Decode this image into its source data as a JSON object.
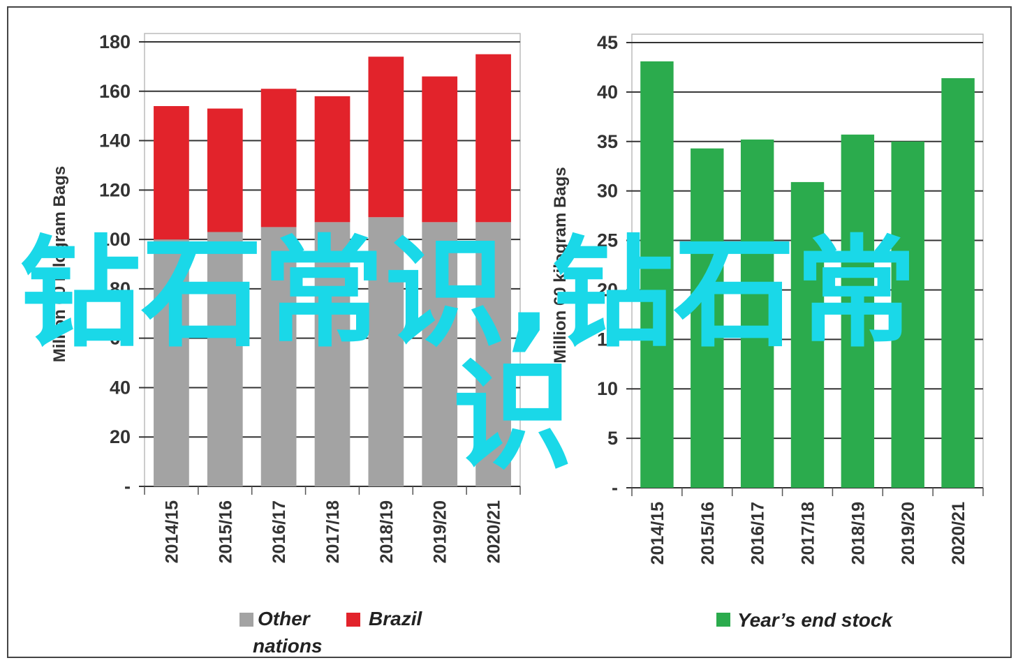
{
  "colors": {
    "other": "#a3a3a3",
    "brazil": "#e2232b",
    "stock": "#2bab4d",
    "grid": "#333333",
    "overlay": "#1ad8e8"
  },
  "overlay": {
    "line1": "钻石常识,钻石常",
    "line2": "识"
  },
  "chart_data": [
    {
      "type": "bar",
      "stacked": true,
      "title": "",
      "xlabel": "",
      "ylabel": "Million 60 kilogram Bags",
      "ylim": [
        0,
        180
      ],
      "yticks": [
        0,
        20,
        40,
        60,
        80,
        100,
        120,
        140,
        160,
        180
      ],
      "categories": [
        "2014/15",
        "2015/16",
        "2016/17",
        "2017/18",
        "2018/19",
        "2019/20",
        "2020/21"
      ],
      "series": [
        {
          "name": "Other nations",
          "values": [
            100,
            103,
            105,
            107,
            109,
            107,
            107
          ]
        },
        {
          "name": "Brazil",
          "values": [
            54,
            50,
            56,
            51,
            65,
            59,
            68
          ]
        }
      ],
      "legend": {
        "other_line1": "Other",
        "other_line2": "nations",
        "brazil": "Brazil",
        "position": "bottom"
      },
      "grid": true
    },
    {
      "type": "bar",
      "title": "",
      "xlabel": "",
      "ylabel": "Million 60 kilogram Bags",
      "ylim": [
        0,
        45
      ],
      "yticks": [
        0,
        5,
        10,
        15,
        20,
        25,
        30,
        35,
        40,
        45
      ],
      "categories": [
        "2014/15",
        "2015/16",
        "2016/17",
        "2017/18",
        "2018/19",
        "2019/20",
        "2020/21"
      ],
      "series": [
        {
          "name": "Year's end stock",
          "values": [
            43.1,
            34.3,
            35.2,
            30.9,
            35.7,
            35.0,
            41.4
          ]
        }
      ],
      "legend": {
        "stock": "Year’s end stock",
        "position": "bottom"
      },
      "grid": true
    }
  ]
}
